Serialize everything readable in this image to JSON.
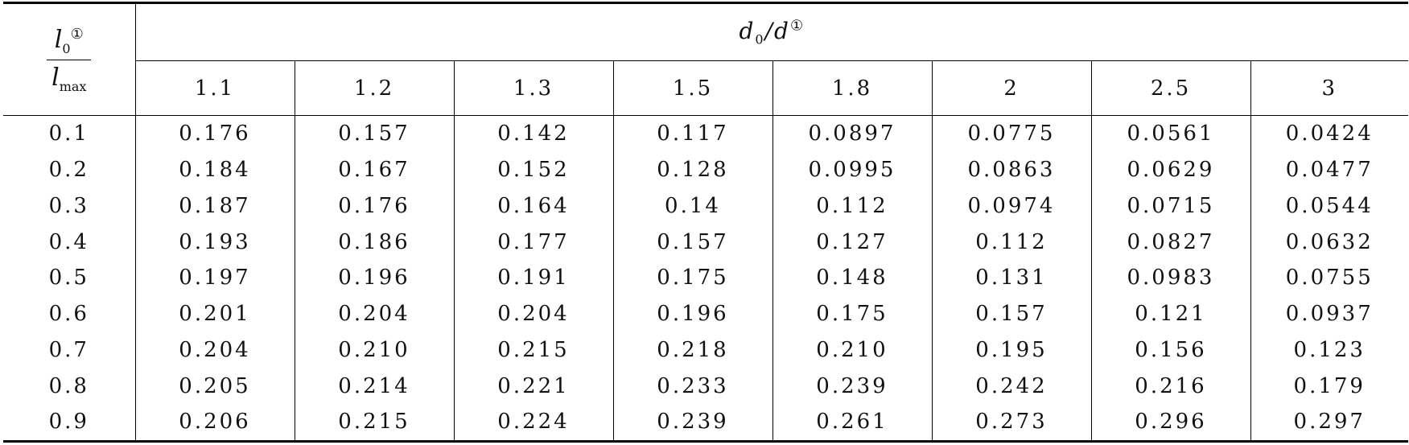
{
  "header": {
    "row_label": {
      "num_base": "l",
      "num_sub": "0",
      "num_sup": "①",
      "den_base": "l",
      "den_sub": "max"
    },
    "col_group": {
      "base": "d",
      "sub": "0",
      "slash": "/",
      "base2": "d",
      "sup": "①"
    },
    "columns": [
      "1.1",
      "1.2",
      "1.3",
      "1.5",
      "1.8",
      "2",
      "2.5",
      "3"
    ]
  },
  "rows": [
    {
      "label": "0.1",
      "values": [
        "0.176",
        "0.157",
        "0.142",
        "0.117",
        "0.0897",
        "0.0775",
        "0.0561",
        "0.0424"
      ]
    },
    {
      "label": "0.2",
      "values": [
        "0.184",
        "0.167",
        "0.152",
        "0.128",
        "0.0995",
        "0.0863",
        "0.0629",
        "0.0477"
      ]
    },
    {
      "label": "0.3",
      "values": [
        "0.187",
        "0.176",
        "0.164",
        "0.14",
        "0.112",
        "0.0974",
        "0.0715",
        "0.0544"
      ]
    },
    {
      "label": "0.4",
      "values": [
        "0.193",
        "0.186",
        "0.177",
        "0.157",
        "0.127",
        "0.112",
        "0.0827",
        "0.0632"
      ]
    },
    {
      "label": "0.5",
      "values": [
        "0.197",
        "0.196",
        "0.191",
        "0.175",
        "0.148",
        "0.131",
        "0.0983",
        "0.0755"
      ]
    },
    {
      "label": "0.6",
      "values": [
        "0.201",
        "0.204",
        "0.204",
        "0.196",
        "0.175",
        "0.157",
        "0.121",
        "0.0937"
      ]
    },
    {
      "label": "0.7",
      "values": [
        "0.204",
        "0.210",
        "0.215",
        "0.218",
        "0.210",
        "0.195",
        "0.156",
        "0.123"
      ]
    },
    {
      "label": "0.8",
      "values": [
        "0.205",
        "0.214",
        "0.221",
        "0.233",
        "0.239",
        "0.242",
        "0.216",
        "0.179"
      ]
    },
    {
      "label": "0.9",
      "values": [
        "0.206",
        "0.215",
        "0.224",
        "0.239",
        "0.261",
        "0.273",
        "0.296",
        "0.297"
      ]
    }
  ]
}
